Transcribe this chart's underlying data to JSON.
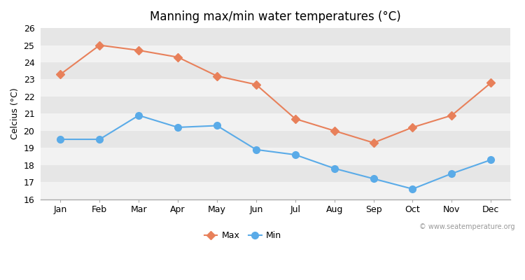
{
  "title": "Manning max/min water temperatures (°C)",
  "ylabel": "Celcius (°C)",
  "months": [
    "Jan",
    "Feb",
    "Mar",
    "Apr",
    "May",
    "Jun",
    "Jul",
    "Aug",
    "Sep",
    "Oct",
    "Nov",
    "Dec"
  ],
  "max_temps": [
    23.3,
    25.0,
    24.7,
    24.3,
    23.2,
    22.7,
    20.7,
    20.0,
    19.3,
    20.2,
    20.9,
    22.8
  ],
  "min_temps": [
    19.5,
    19.5,
    20.9,
    20.2,
    20.3,
    18.9,
    18.6,
    17.8,
    17.2,
    16.6,
    17.5,
    18.3
  ],
  "max_color": "#e8805a",
  "min_color": "#5aabe8",
  "fig_bg_color": "#ffffff",
  "plot_bg_color": "#f2f2f2",
  "band_color_light": "#f2f2f2",
  "band_color_dark": "#e6e6e6",
  "ylim": [
    16,
    26
  ],
  "yticks": [
    16,
    17,
    18,
    19,
    20,
    21,
    22,
    23,
    24,
    25,
    26
  ],
  "max_marker": "D",
  "min_marker": "o",
  "max_marker_size": 6,
  "min_marker_size": 7,
  "linewidth": 1.5,
  "legend_labels": [
    "Max",
    "Min"
  ],
  "watermark": "© www.seatemperature.org",
  "title_fontsize": 12,
  "label_fontsize": 9,
  "tick_fontsize": 9
}
